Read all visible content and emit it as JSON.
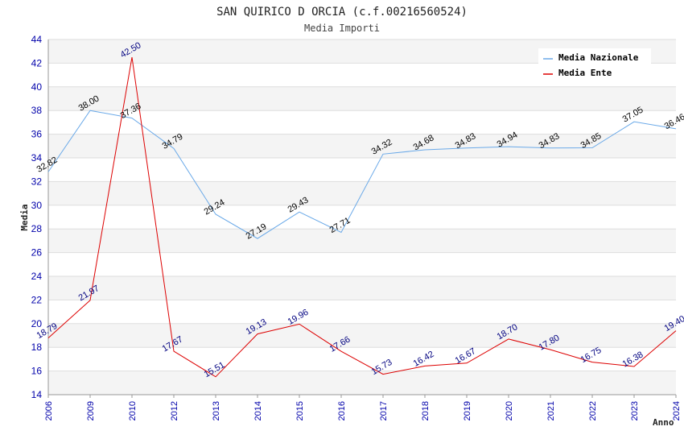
{
  "chart_data": {
    "type": "line",
    "title": "SAN QUIRICO D ORCIA (c.f.00216560524)",
    "subtitle": "Media Importi",
    "xlabel": "Anno",
    "ylabel": "Media",
    "ylim": [
      14,
      44
    ],
    "yticks": [
      14,
      16,
      18,
      20,
      22,
      24,
      26,
      28,
      30,
      32,
      34,
      36,
      38,
      40,
      42,
      44
    ],
    "categories": [
      "2006",
      "2009",
      "2010",
      "2012",
      "2013",
      "2014",
      "2015",
      "2016",
      "2017",
      "2018",
      "2019",
      "2020",
      "2021",
      "2022",
      "2023",
      "2024"
    ],
    "series": [
      {
        "name": "Media Nazionale",
        "color": "#6aa9e8",
        "values": [
          32.82,
          38.0,
          37.36,
          34.79,
          29.24,
          27.19,
          29.43,
          27.71,
          34.32,
          34.68,
          34.83,
          34.94,
          34.83,
          34.85,
          37.05,
          36.46
        ],
        "labels": [
          "32.82",
          "38.00",
          "37.36",
          "34.79",
          "29.24",
          "27.19",
          "29.43",
          "27.71",
          "34.32",
          "34.68",
          "34.83",
          "34.94",
          "34.83",
          "34.85",
          "37.05",
          "36.46"
        ]
      },
      {
        "name": "Media Ente",
        "color": "#dd0000",
        "values": [
          18.79,
          21.97,
          42.5,
          17.67,
          15.51,
          19.13,
          19.96,
          17.66,
          15.73,
          16.42,
          16.67,
          18.7,
          17.8,
          16.75,
          16.38,
          19.4
        ],
        "labels": [
          "18.79",
          "21.97",
          "42.50",
          "17.67",
          "15.51",
          "19.13",
          "19.96",
          "17.66",
          "15.73",
          "16.42",
          "16.67",
          "18.70",
          "17.80",
          "16.75",
          "16.38",
          "19.40"
        ]
      }
    ],
    "legend": "top-right",
    "grid": true
  }
}
